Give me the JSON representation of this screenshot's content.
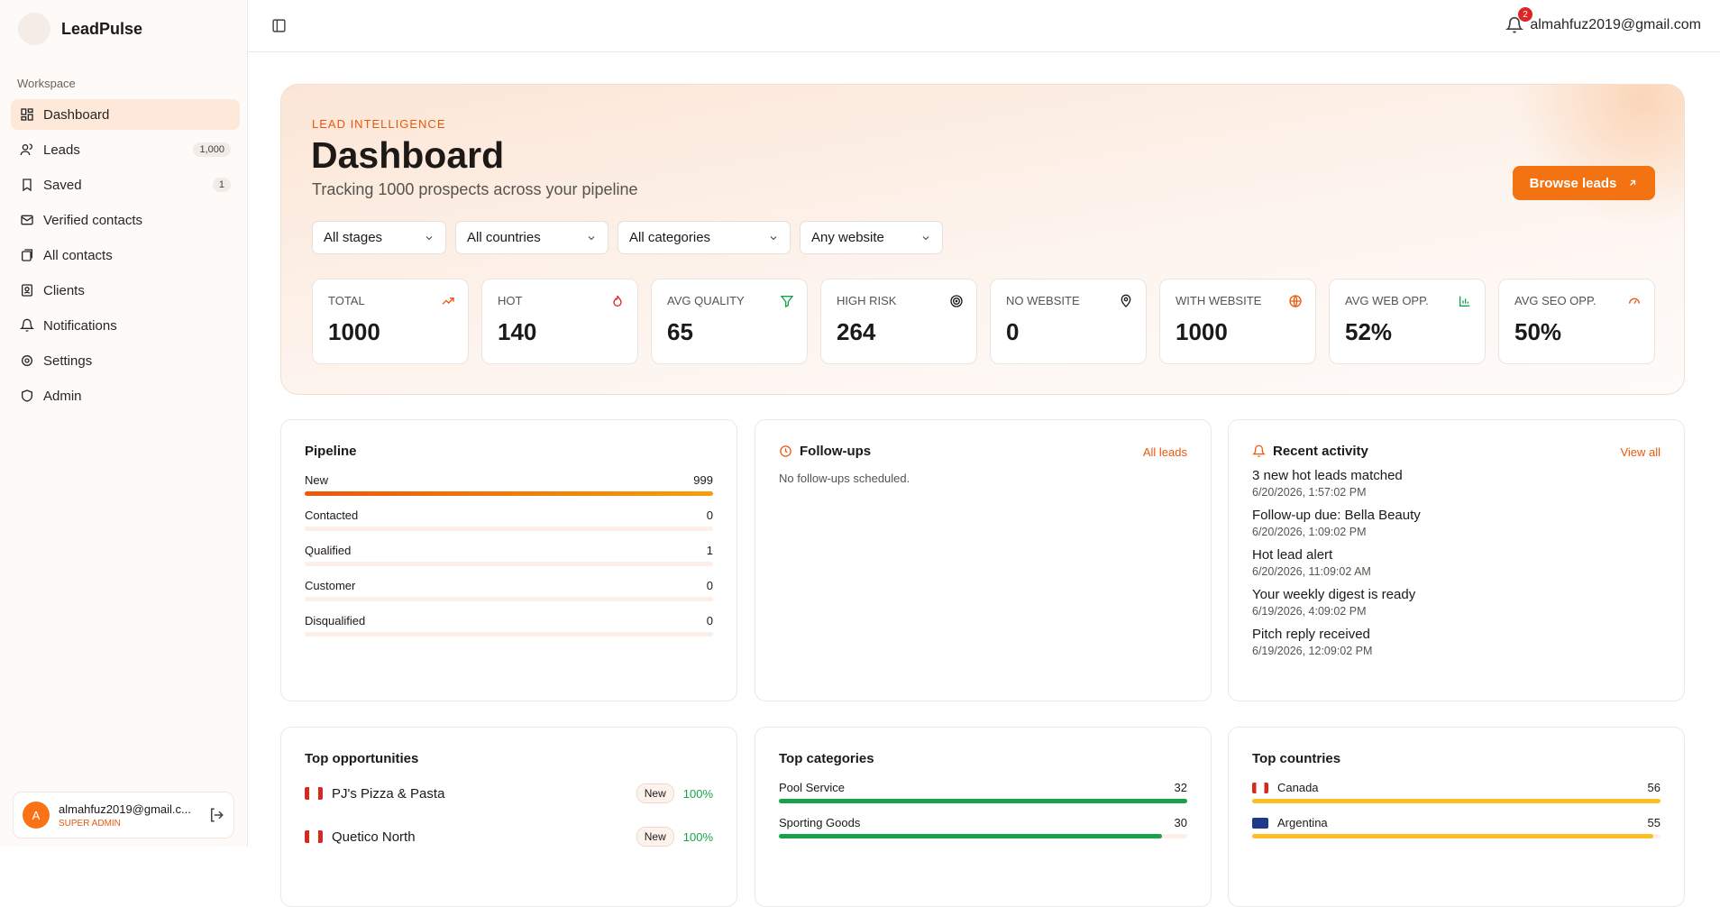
{
  "sidebar": {
    "brand": "LeadPulse",
    "section": "Workspace",
    "nav": [
      {
        "label": "Dashboard"
      },
      {
        "label": "Leads",
        "badge": "1,000"
      },
      {
        "label": "Saved",
        "badge": "1"
      },
      {
        "label": "Verified contacts"
      },
      {
        "label": "All contacts"
      },
      {
        "label": "Clients"
      },
      {
        "label": "Notifications"
      },
      {
        "label": "Settings"
      },
      {
        "label": "Admin"
      }
    ],
    "user": {
      "avatar": "A",
      "email": "almahfuz2019@gmail.c...",
      "role": "SUPER ADMIN"
    }
  },
  "header": {
    "notifications": "2",
    "email": "almahfuz2019@gmail.com"
  },
  "hero": {
    "eyebrow": "LEAD INTELLIGENCE",
    "title": "Dashboard",
    "subtitle": "Tracking 1000 prospects across your pipeline",
    "button": "Browse leads",
    "filters": [
      "All stages",
      "All countries",
      "All categories",
      "Any website"
    ],
    "stats": [
      {
        "label": "TOTAL",
        "value": "1000"
      },
      {
        "label": "HOT",
        "value": "140"
      },
      {
        "label": "AVG QUALITY",
        "value": "65"
      },
      {
        "label": "HIGH RISK",
        "value": "264"
      },
      {
        "label": "NO WEBSITE",
        "value": "0"
      },
      {
        "label": "WITH WEBSITE",
        "value": "1000"
      },
      {
        "label": "AVG WEB OPP.",
        "value": "52%"
      },
      {
        "label": "AVG SEO OPP.",
        "value": "50%"
      }
    ]
  },
  "pipeline": {
    "title": "Pipeline",
    "stages": [
      {
        "name": "New",
        "count": 999
      },
      {
        "name": "Contacted",
        "count": 0
      },
      {
        "name": "Qualified",
        "count": 1
      },
      {
        "name": "Customer",
        "count": 0
      },
      {
        "name": "Disqualified",
        "count": 0
      }
    ]
  },
  "followups": {
    "title": "Follow-ups",
    "link": "All leads",
    "empty": "No follow-ups scheduled."
  },
  "activity": {
    "title": "Recent activity",
    "link": "View all",
    "items": [
      {
        "text": "3 new hot leads matched",
        "time": "6/20/2026, 1:57:02 PM"
      },
      {
        "text": "Follow-up due: Bella Beauty",
        "time": "6/20/2026, 1:09:02 PM"
      },
      {
        "text": "Hot lead alert",
        "time": "6/20/2026, 11:09:02 AM"
      },
      {
        "text": "Your weekly digest is ready",
        "time": "6/19/2026, 4:09:02 PM"
      },
      {
        "text": "Pitch reply received",
        "time": "6/19/2026, 12:09:02 PM"
      }
    ]
  },
  "top_opportunities": {
    "title": "Top opportunities",
    "items": [
      {
        "name": "PJ's Pizza & Pasta",
        "stage": "New",
        "score": "100%"
      },
      {
        "name": "Quetico North",
        "stage": "New",
        "score": "100%"
      }
    ]
  },
  "top_categories": {
    "title": "Top categories",
    "items": [
      {
        "name": "Pool Service",
        "count": 32
      },
      {
        "name": "Sporting Goods",
        "count": 30
      }
    ]
  },
  "top_countries": {
    "title": "Top countries",
    "items": [
      {
        "name": "Canada",
        "count": 56
      },
      {
        "name": "Argentina",
        "count": 55
      }
    ]
  }
}
